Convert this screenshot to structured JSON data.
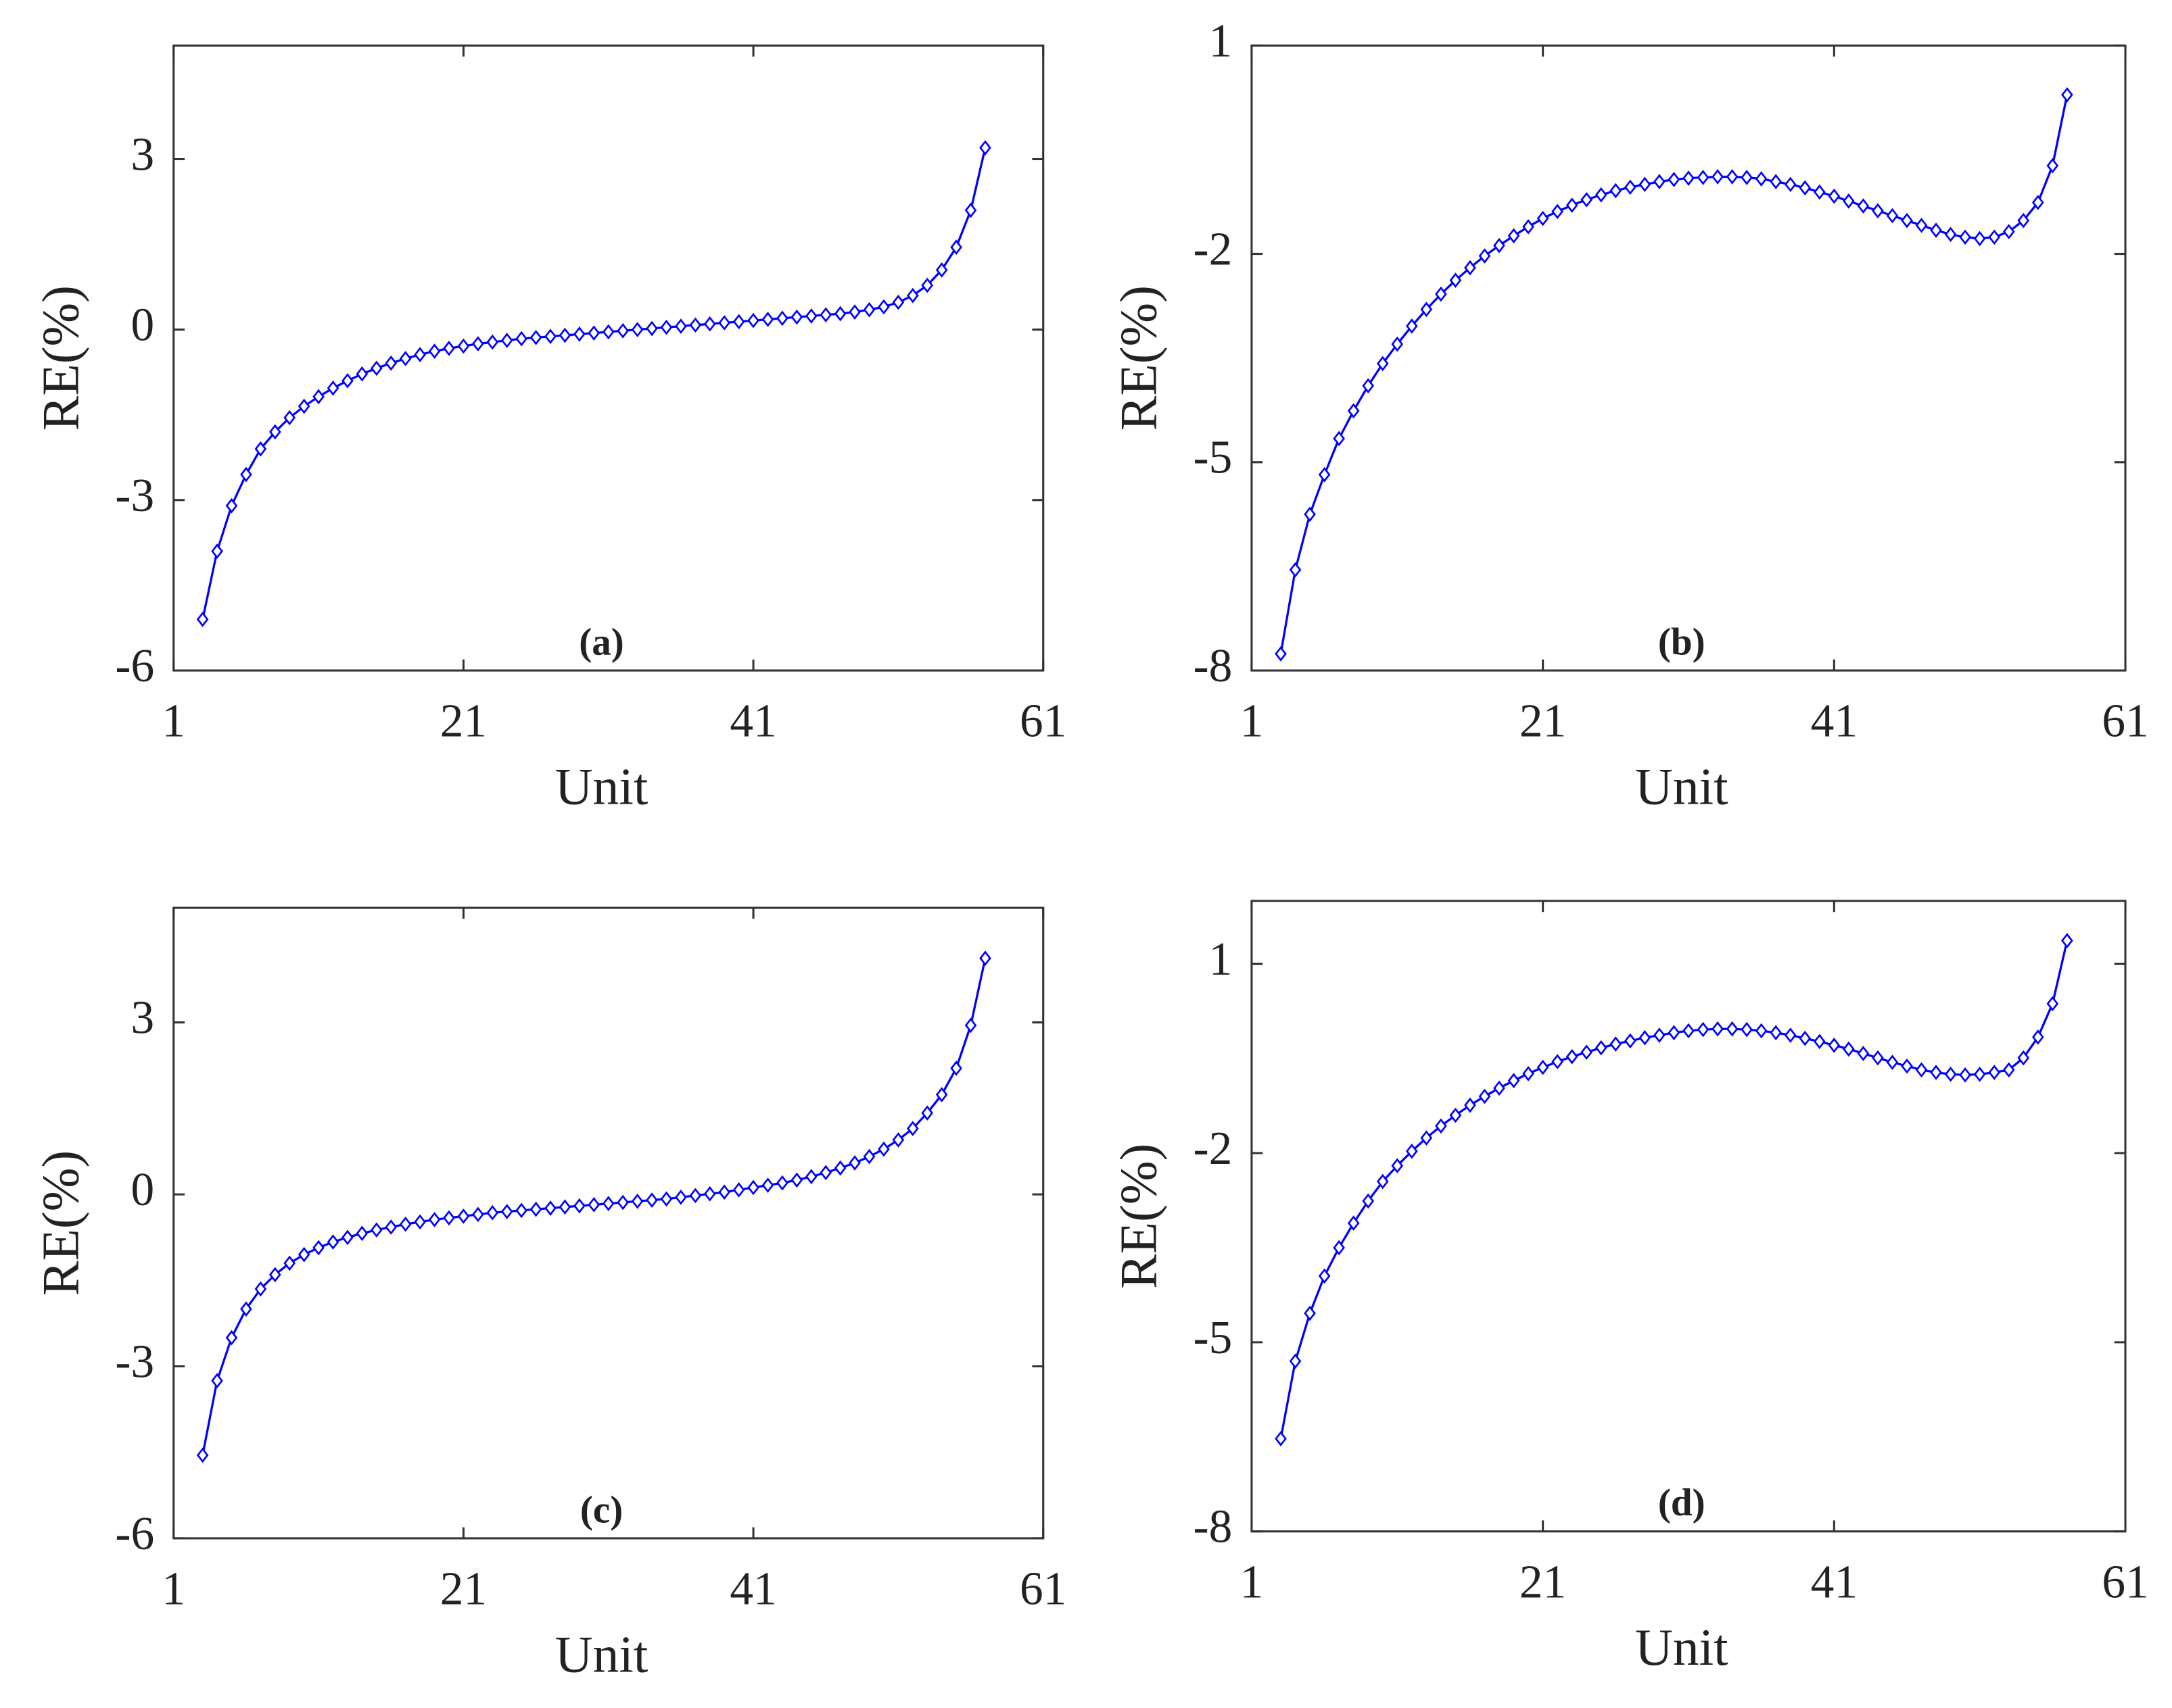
{
  "chart_data": [
    {
      "type": "line",
      "label": "(a)",
      "xlabel": "Unit",
      "ylabel": "RE(%)",
      "color": "#0000ff",
      "marker": "diamond",
      "xlim": [
        1,
        61
      ],
      "xticks": [
        1,
        21,
        41,
        61
      ],
      "ylim": [
        -6,
        5
      ],
      "yticks": [
        -6,
        -3,
        0,
        3
      ],
      "x": [
        3,
        4,
        5,
        6,
        7,
        8,
        9,
        10,
        11,
        12,
        13,
        14,
        15,
        16,
        17,
        18,
        19,
        20,
        21,
        22,
        23,
        24,
        25,
        26,
        27,
        28,
        29,
        30,
        31,
        32,
        33,
        34,
        35,
        36,
        37,
        38,
        39,
        40,
        41,
        42,
        43,
        44,
        45,
        46,
        47,
        48,
        49,
        50,
        51,
        52,
        53,
        54,
        55,
        56,
        57
      ],
      "values": [
        -5.1,
        -3.9,
        -3.1,
        -2.55,
        -2.1,
        -1.8,
        -1.55,
        -1.35,
        -1.18,
        -1.03,
        -0.9,
        -0.78,
        -0.68,
        -0.59,
        -0.51,
        -0.44,
        -0.38,
        -0.33,
        -0.29,
        -0.25,
        -0.22,
        -0.19,
        -0.16,
        -0.14,
        -0.12,
        -0.1,
        -0.08,
        -0.06,
        -0.04,
        -0.02,
        0,
        0.02,
        0.04,
        0.06,
        0.08,
        0.1,
        0.12,
        0.14,
        0.16,
        0.18,
        0.2,
        0.22,
        0.24,
        0.26,
        0.28,
        0.31,
        0.35,
        0.4,
        0.48,
        0.6,
        0.78,
        1.05,
        1.45,
        2.1,
        3.2
      ]
    },
    {
      "type": "line",
      "label": "(b)",
      "xlabel": "Unit",
      "ylabel": "RE(%)",
      "color": "#0000ff",
      "marker": "diamond",
      "xlim": [
        1,
        61
      ],
      "xticks": [
        1,
        21,
        41,
        61
      ],
      "ylim": [
        -8,
        1
      ],
      "yticks": [
        -8,
        -5,
        -2,
        1
      ],
      "x": [
        3,
        4,
        5,
        6,
        7,
        8,
        9,
        10,
        11,
        12,
        13,
        14,
        15,
        16,
        17,
        18,
        19,
        20,
        21,
        22,
        23,
        24,
        25,
        26,
        27,
        28,
        29,
        30,
        31,
        32,
        33,
        34,
        35,
        36,
        37,
        38,
        39,
        40,
        41,
        42,
        43,
        44,
        45,
        46,
        47,
        48,
        49,
        50,
        51,
        52,
        53,
        54,
        55,
        56,
        57
      ],
      "values": [
        -7.76,
        -6.55,
        -5.75,
        -5.18,
        -4.66,
        -4.26,
        -3.9,
        -3.58,
        -3.3,
        -3.04,
        -2.8,
        -2.58,
        -2.38,
        -2.2,
        -2.03,
        -1.88,
        -1.74,
        -1.61,
        -1.49,
        -1.39,
        -1.3,
        -1.22,
        -1.15,
        -1.09,
        -1.04,
        -1.0,
        -0.96,
        -0.93,
        -0.91,
        -0.9,
        -0.89,
        -0.89,
        -0.9,
        -0.92,
        -0.96,
        -1.0,
        -1.05,
        -1.11,
        -1.17,
        -1.24,
        -1.31,
        -1.38,
        -1.45,
        -1.52,
        -1.59,
        -1.66,
        -1.72,
        -1.76,
        -1.78,
        -1.76,
        -1.68,
        -1.52,
        -1.26,
        -0.73,
        0.29
      ]
    },
    {
      "type": "line",
      "label": "(c)",
      "xlabel": "Unit",
      "ylabel": "RE(%)",
      "color": "#0000ff",
      "marker": "diamond",
      "xlim": [
        1,
        61
      ],
      "xticks": [
        1,
        21,
        41,
        61
      ],
      "ylim": [
        -6,
        5
      ],
      "yticks": [
        -6,
        -3,
        0,
        3
      ],
      "x": [
        3,
        4,
        5,
        6,
        7,
        8,
        9,
        10,
        11,
        12,
        13,
        14,
        15,
        16,
        17,
        18,
        19,
        20,
        21,
        22,
        23,
        24,
        25,
        26,
        27,
        28,
        29,
        30,
        31,
        32,
        33,
        34,
        35,
        36,
        37,
        38,
        39,
        40,
        41,
        42,
        43,
        44,
        45,
        46,
        47,
        48,
        49,
        50,
        51,
        52,
        53,
        54,
        55,
        56,
        57
      ],
      "values": [
        -4.55,
        -3.25,
        -2.5,
        -2.0,
        -1.65,
        -1.4,
        -1.2,
        -1.05,
        -0.93,
        -0.83,
        -0.75,
        -0.68,
        -0.62,
        -0.57,
        -0.52,
        -0.48,
        -0.44,
        -0.41,
        -0.38,
        -0.35,
        -0.32,
        -0.3,
        -0.28,
        -0.26,
        -0.24,
        -0.22,
        -0.2,
        -0.18,
        -0.16,
        -0.14,
        -0.12,
        -0.1,
        -0.08,
        -0.05,
        -0.02,
        0.01,
        0.04,
        0.08,
        0.12,
        0.16,
        0.2,
        0.25,
        0.31,
        0.38,
        0.46,
        0.55,
        0.66,
        0.79,
        0.95,
        1.15,
        1.42,
        1.74,
        2.2,
        2.95,
        4.12
      ]
    },
    {
      "type": "line",
      "label": "(d)",
      "xlabel": "Unit",
      "ylabel": "RE(%)",
      "color": "#0000ff",
      "marker": "diamond",
      "xlim": [
        1,
        61
      ],
      "xticks": [
        1,
        21,
        41,
        61
      ],
      "ylim": [
        -8,
        2
      ],
      "yticks": [
        -8,
        -5,
        -2,
        1
      ],
      "x": [
        3,
        4,
        5,
        6,
        7,
        8,
        9,
        10,
        11,
        12,
        13,
        14,
        15,
        16,
        17,
        18,
        19,
        20,
        21,
        22,
        23,
        24,
        25,
        26,
        27,
        28,
        29,
        30,
        31,
        32,
        33,
        34,
        35,
        36,
        37,
        38,
        39,
        40,
        41,
        42,
        43,
        44,
        45,
        46,
        47,
        48,
        49,
        50,
        51,
        52,
        53,
        54,
        55,
        56,
        57
      ],
      "values": [
        -6.53,
        -5.3,
        -4.54,
        -3.95,
        -3.5,
        -3.11,
        -2.76,
        -2.45,
        -2.2,
        -1.97,
        -1.76,
        -1.57,
        -1.4,
        -1.24,
        -1.1,
        -0.97,
        -0.85,
        -0.74,
        -0.64,
        -0.55,
        -0.47,
        -0.4,
        -0.33,
        -0.27,
        -0.22,
        -0.17,
        -0.13,
        -0.09,
        -0.06,
        -0.04,
        -0.03,
        -0.03,
        -0.04,
        -0.06,
        -0.09,
        -0.13,
        -0.18,
        -0.23,
        -0.29,
        -0.35,
        -0.42,
        -0.49,
        -0.56,
        -0.62,
        -0.68,
        -0.72,
        -0.75,
        -0.76,
        -0.75,
        -0.72,
        -0.68,
        -0.49,
        -0.16,
        0.37,
        1.37
      ]
    }
  ]
}
